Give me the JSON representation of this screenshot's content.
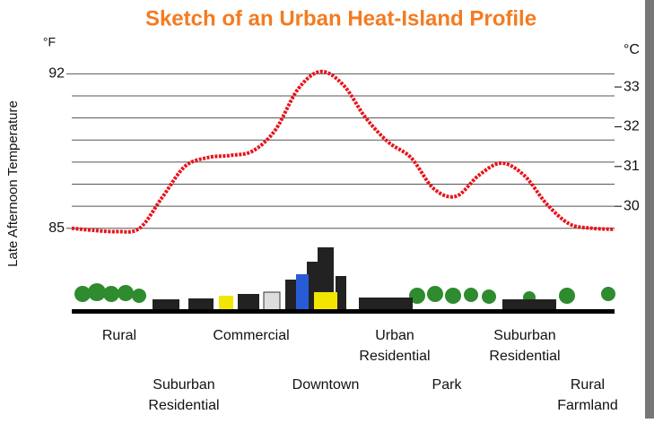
{
  "chart_data": {
    "type": "line",
    "title": "Sketch of an Urban Heat-Island Profile",
    "y_label": "Late Afternoon Temperature",
    "y_unit": "°F",
    "y2_unit": "°C",
    "ylim": [
      84.5,
      92.5
    ],
    "yticks": [
      85,
      92
    ],
    "minor_yticks": [
      86,
      87,
      88,
      89,
      90,
      91
    ],
    "y2lim": [
      29.17,
      33.61
    ],
    "y2ticks": [
      30,
      31,
      32,
      33
    ],
    "grid": true,
    "series": [
      {
        "color": "#e8141a",
        "values": [
          85.0,
          84.9,
          84.85,
          85.0,
          86.4,
          87.8,
          88.2,
          88.3,
          88.5,
          89.45,
          91.3,
          92.1,
          91.5,
          90.0,
          88.9,
          88.2,
          86.8,
          86.45,
          87.4,
          87.95,
          87.4,
          86.1,
          85.2,
          85.0,
          84.95
        ]
      }
    ],
    "zones": [
      [
        "Rural"
      ],
      [
        "Suburban",
        "Residential"
      ],
      [
        "Commercial"
      ],
      [
        "Downtown"
      ],
      [
        "Urban",
        "Residential"
      ],
      [
        "Park"
      ],
      [
        "Suburban",
        "Residential"
      ],
      [
        "Rural",
        "Farmland"
      ]
    ]
  }
}
